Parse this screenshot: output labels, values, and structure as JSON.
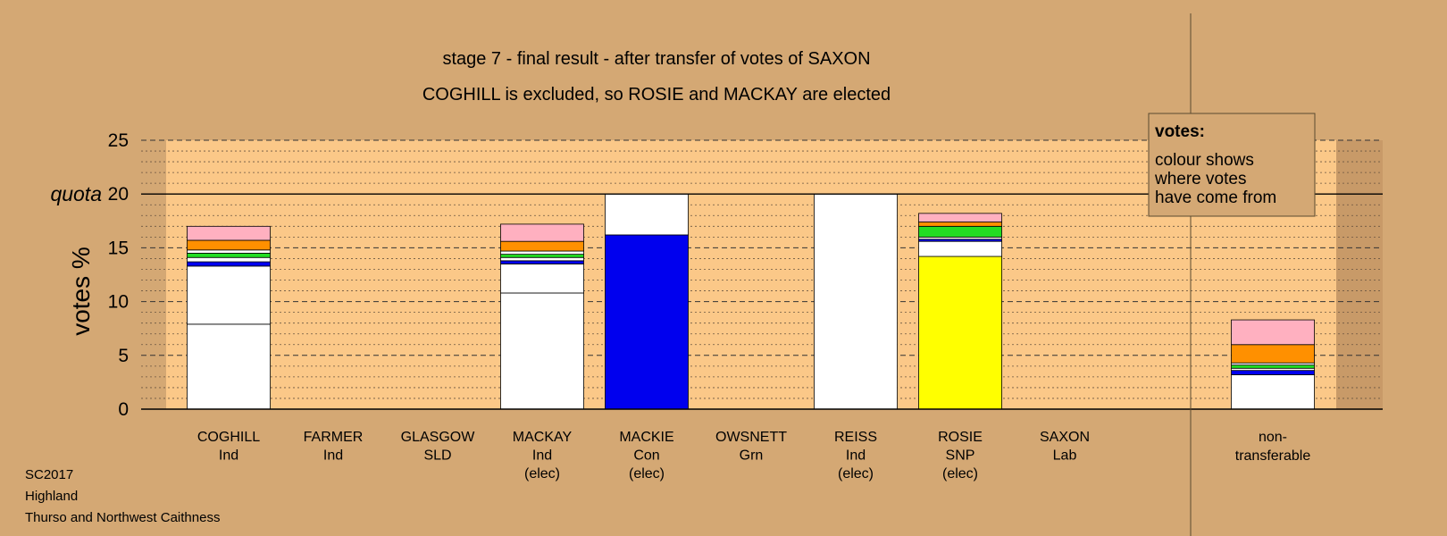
{
  "colors": {
    "background": "#d4a874",
    "plot_area": "#fbc888",
    "nontransfer_area": "#c89a68",
    "white": "#ffffff",
    "blue": "#0000ee",
    "yellow": "#ffff00",
    "green": "#22dd22",
    "orange": "#ff9000",
    "pink": "#ffb0c0"
  },
  "chart_data": {
    "type": "bar",
    "stacked": true,
    "title": "stage 7 - final result - after transfer of votes of SAXON",
    "subtitle": "COGHILL is excluded, so ROSIE and MACKAY are elected",
    "ylabel": "votes %",
    "ylim": [
      0,
      25
    ],
    "yticks": [
      "0",
      "5",
      "10",
      "15",
      "20",
      "25"
    ],
    "quota": {
      "label": "quota",
      "value": 20
    },
    "grid": "dashed every 5, dotted minor",
    "legend": {
      "title": "votes:",
      "lines": [
        "colour shows",
        "where votes",
        "have come from"
      ],
      "placement": "top-right"
    },
    "categories": [
      {
        "name": "COGHILL",
        "party": "Ind",
        "note": ""
      },
      {
        "name": "FARMER",
        "party": "Ind",
        "note": ""
      },
      {
        "name": "GLASGOW",
        "party": "SLD",
        "note": ""
      },
      {
        "name": "MACKAY",
        "party": "Ind",
        "note": "(elec)"
      },
      {
        "name": "MACKIE",
        "party": "Con",
        "note": "(elec)"
      },
      {
        "name": "OWSNETT",
        "party": "Grn",
        "note": ""
      },
      {
        "name": "REISS",
        "party": "Ind",
        "note": "(elec)"
      },
      {
        "name": "ROSIE",
        "party": "SNP",
        "note": "(elec)"
      },
      {
        "name": "SAXON",
        "party": "Lab",
        "note": ""
      }
    ],
    "nontransferable_label": [
      "non-",
      "transferable"
    ],
    "bars": [
      {
        "category": "COGHILL",
        "segments": [
          {
            "color": "white",
            "value": 7.9
          },
          {
            "color": "white",
            "value": 5.4
          },
          {
            "color": "blue",
            "value": 0.4
          },
          {
            "color": "white",
            "value": 0.4
          },
          {
            "color": "green",
            "value": 0.4
          },
          {
            "color": "white",
            "value": 0.3
          },
          {
            "color": "orange",
            "value": 0.9
          },
          {
            "color": "pink",
            "value": 1.3
          }
        ]
      },
      {
        "category": "FARMER",
        "segments": []
      },
      {
        "category": "GLASGOW",
        "segments": []
      },
      {
        "category": "MACKAY",
        "segments": [
          {
            "color": "white",
            "value": 10.8
          },
          {
            "color": "white",
            "value": 2.7
          },
          {
            "color": "blue",
            "value": 0.3
          },
          {
            "color": "white",
            "value": 0.3
          },
          {
            "color": "green",
            "value": 0.3
          },
          {
            "color": "white",
            "value": 0.3
          },
          {
            "color": "orange",
            "value": 0.9
          },
          {
            "color": "pink",
            "value": 1.6
          }
        ]
      },
      {
        "category": "MACKIE",
        "segments": [
          {
            "color": "blue",
            "value": 16.2
          },
          {
            "color": "white",
            "value": 3.8
          }
        ]
      },
      {
        "category": "OWSNETT",
        "segments": []
      },
      {
        "category": "REISS",
        "segments": [
          {
            "color": "white",
            "value": 20.0
          }
        ]
      },
      {
        "category": "ROSIE",
        "segments": [
          {
            "color": "yellow",
            "value": 14.2
          },
          {
            "color": "white",
            "value": 1.4
          },
          {
            "color": "blue",
            "value": 0.2
          },
          {
            "color": "white",
            "value": 0.2
          },
          {
            "color": "green",
            "value": 1.0
          },
          {
            "color": "orange",
            "value": 0.4
          },
          {
            "color": "pink",
            "value": 0.8
          }
        ]
      },
      {
        "category": "SAXON",
        "segments": []
      },
      {
        "category": "non-transferable",
        "segments": [
          {
            "color": "white",
            "value": 3.2
          },
          {
            "color": "blue",
            "value": 0.4
          },
          {
            "color": "white",
            "value": 0.2
          },
          {
            "color": "green",
            "value": 0.3
          },
          {
            "color": "white",
            "value": 0.2
          },
          {
            "color": "orange",
            "value": 1.7
          },
          {
            "color": "pink",
            "value": 2.3
          }
        ]
      }
    ]
  },
  "footer": {
    "line1": "SC2017",
    "line2": "Highland",
    "line3": "Thurso and Northwest Caithness"
  }
}
